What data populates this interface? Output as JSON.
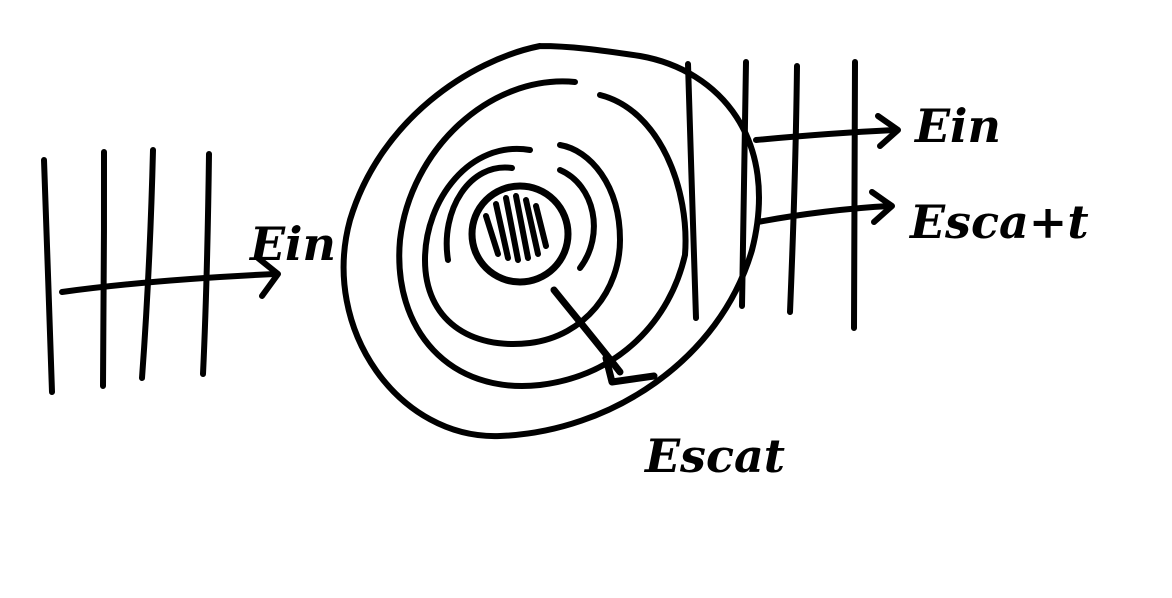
{
  "colors": {
    "ink": "#000000",
    "background": "#ffffff"
  },
  "labels": {
    "incident_left": "Ein",
    "incident_right": "Ein",
    "scattered_right": "Esca+t",
    "scattered_bottom": "Escat"
  }
}
